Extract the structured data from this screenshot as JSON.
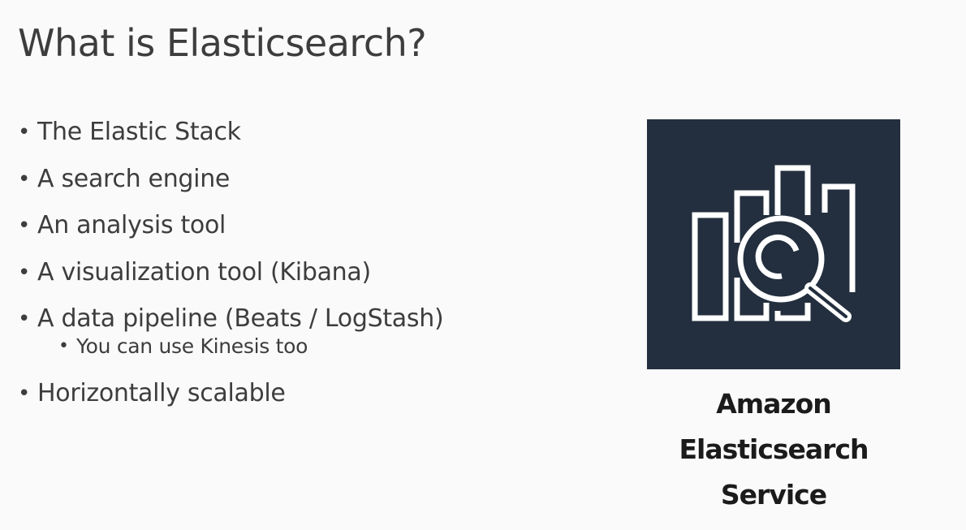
{
  "slide": {
    "title": "What is Elasticsearch?",
    "bullets": [
      "The Elastic Stack",
      "A search engine",
      "An analysis tool",
      "A visualization tool (Kibana)",
      "A data pipeline (Beats / LogStash)",
      "Horizontally scalable"
    ],
    "sub_bullets": [
      "You can use Kinesis too"
    ]
  },
  "logo": {
    "icon": "elasticsearch-service-icon",
    "background_color": "#232f3e",
    "stroke_color": "#ffffff",
    "name_lines": [
      "Amazon",
      "Elasticsearch",
      "Service"
    ]
  }
}
